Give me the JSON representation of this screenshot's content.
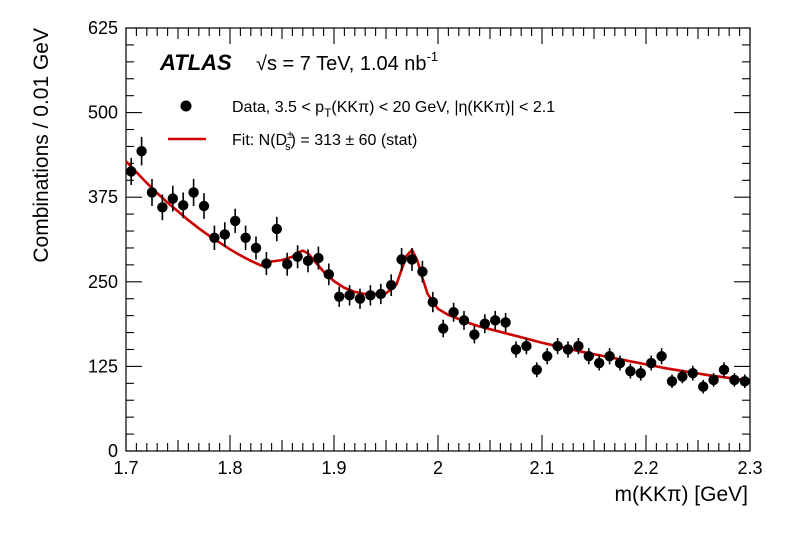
{
  "chart_data": {
    "type": "scatter",
    "xlabel": "m(KKπ) [GeV]",
    "ylabel": "Combinations / 0.01 GeV",
    "xlim": [
      1.7,
      2.3
    ],
    "ylim": [
      0,
      625
    ],
    "x_ticks": [
      1.7,
      1.8,
      1.9,
      2.0,
      2.1,
      2.2,
      2.3
    ],
    "x_tick_labels": [
      "1.7",
      "1.8",
      "1.9",
      "2",
      "2.1",
      "2.2",
      "2.3"
    ],
    "y_ticks": [
      0,
      125,
      250,
      375,
      500,
      625
    ],
    "y_tick_labels": [
      "0",
      "125",
      "250",
      "375",
      "500",
      "625"
    ],
    "grid": false,
    "legend_position": "top-right",
    "annotations": {
      "experiment": "ATLAS",
      "energy_prefix": "√s = 7 TeV, 1.04 nb",
      "energy_superscript": "-1"
    },
    "legend": {
      "data_label_parts": [
        "Data, 3.5 < p",
        "T",
        "(KKπ) < 20 GeV, |η(KKπ)| < 2.1"
      ],
      "fit_label_parts": [
        "Fit: N(D",
        "±",
        "s",
        ") = 313 ± 60 (stat)"
      ]
    },
    "series": [
      {
        "name": "Data",
        "type": "scatter",
        "color": "#000000",
        "x": [
          1.705,
          1.715,
          1.725,
          1.735,
          1.745,
          1.755,
          1.765,
          1.775,
          1.785,
          1.795,
          1.805,
          1.815,
          1.825,
          1.835,
          1.845,
          1.855,
          1.865,
          1.875,
          1.885,
          1.895,
          1.905,
          1.915,
          1.925,
          1.935,
          1.945,
          1.955,
          1.965,
          1.975,
          1.985,
          1.995,
          2.005,
          2.015,
          2.025,
          2.035,
          2.045,
          2.055,
          2.065,
          2.075,
          2.085,
          2.095,
          2.105,
          2.115,
          2.125,
          2.135,
          2.145,
          2.155,
          2.165,
          2.175,
          2.185,
          2.195,
          2.205,
          2.215,
          2.225,
          2.235,
          2.245,
          2.255,
          2.265,
          2.275,
          2.285,
          2.295
        ],
        "y": [
          413,
          443,
          382,
          360,
          373,
          363,
          382,
          362,
          315,
          320,
          340,
          315,
          300,
          277,
          328,
          276,
          287,
          281,
          285,
          261,
          228,
          230,
          225,
          230,
          232,
          245,
          283,
          283,
          265,
          220,
          181,
          205,
          193,
          172,
          188,
          193,
          190,
          150,
          155,
          120,
          140,
          155,
          150,
          155,
          140,
          130,
          140,
          130,
          118,
          115,
          130,
          140,
          103,
          110,
          115,
          95,
          105,
          120,
          105,
          103
        ],
        "y_err": [
          20,
          21,
          20,
          19,
          19,
          19,
          20,
          19,
          18,
          18,
          18,
          18,
          17,
          17,
          18,
          17,
          17,
          17,
          17,
          16,
          15,
          15,
          15,
          15,
          15,
          16,
          17,
          17,
          16,
          15,
          13,
          14,
          14,
          13,
          14,
          14,
          14,
          12,
          12,
          11,
          12,
          12,
          12,
          12,
          12,
          11,
          12,
          11,
          11,
          11,
          11,
          12,
          10,
          10,
          11,
          10,
          10,
          11,
          10,
          10
        ]
      },
      {
        "name": "Fit",
        "type": "line",
        "color": "#cc0000",
        "x": [
          1.7,
          1.71,
          1.72,
          1.73,
          1.74,
          1.75,
          1.76,
          1.77,
          1.78,
          1.79,
          1.8,
          1.81,
          1.82,
          1.83,
          1.84,
          1.85,
          1.86,
          1.865,
          1.87,
          1.875,
          1.88,
          1.89,
          1.9,
          1.91,
          1.92,
          1.93,
          1.94,
          1.95,
          1.96,
          1.965,
          1.97,
          1.975,
          1.98,
          1.985,
          1.99,
          2.0,
          2.01,
          2.02,
          2.03,
          2.04,
          2.05,
          2.06,
          2.08,
          2.1,
          2.12,
          2.14,
          2.16,
          2.18,
          2.2,
          2.22,
          2.24,
          2.26,
          2.28,
          2.3
        ],
        "y": [
          428,
          412,
          396,
          381,
          367,
          354,
          341,
          329,
          318,
          308,
          298,
          289,
          281,
          274,
          280,
          282,
          287,
          293,
          296,
          292,
          283,
          265,
          251,
          241,
          235,
          232,
          232,
          233,
          246,
          268,
          289,
          297,
          282,
          256,
          232,
          210,
          201,
          195,
          189,
          184,
          180,
          176,
          168,
          160,
          153,
          146,
          140,
          134,
          128,
          122,
          117,
          112,
          108,
          104
        ]
      }
    ]
  }
}
